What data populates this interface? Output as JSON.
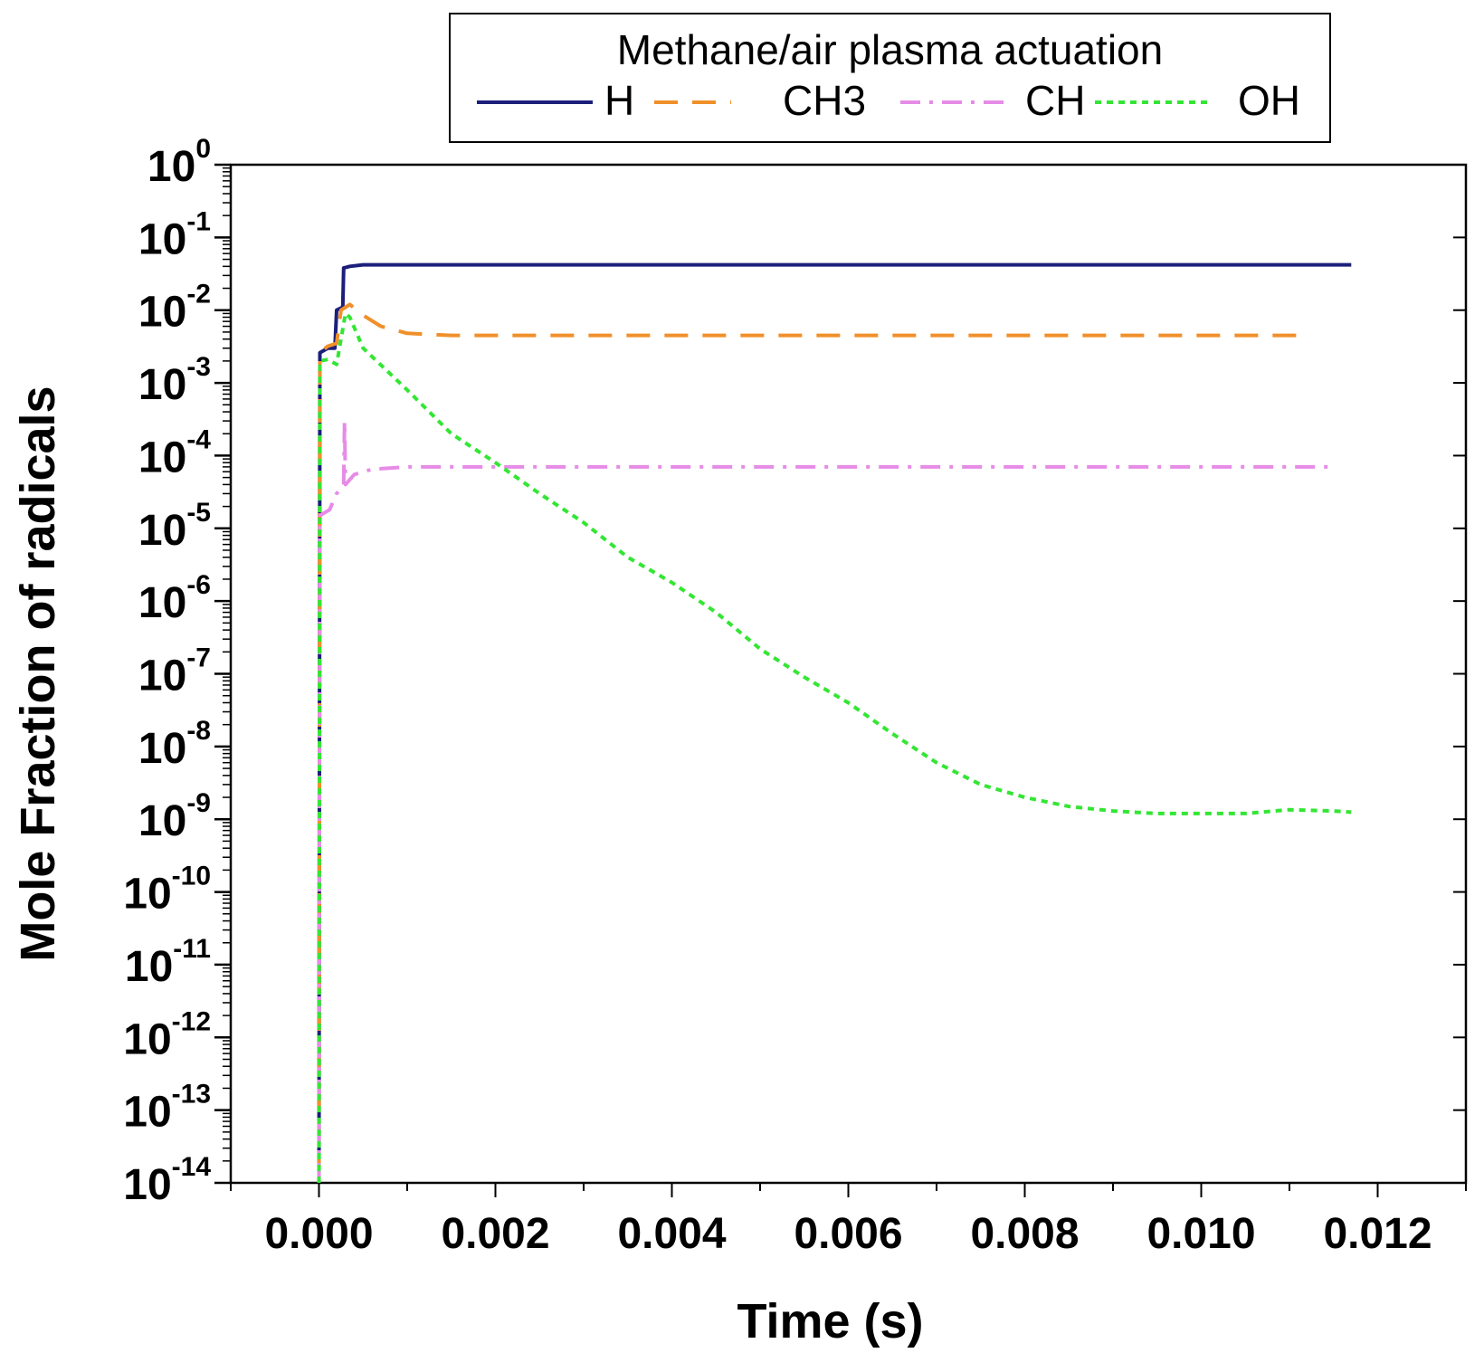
{
  "chart_data": {
    "type": "line",
    "title": "Methane/air plasma actuation",
    "xlabel": "Time (s)",
    "ylabel": "Mole Fraction of radicals",
    "xlim": [
      -0.001,
      0.013
    ],
    "ylim_exponent": [
      -14,
      0
    ],
    "y_scale": "log",
    "x_ticks": [
      0.0,
      0.002,
      0.004,
      0.006,
      0.008,
      0.01,
      0.012
    ],
    "x_tick_labels": [
      "0.000",
      "0.002",
      "0.004",
      "0.006",
      "0.008",
      "0.010",
      "0.012"
    ],
    "y_tick_exponents": [
      0,
      -1,
      -2,
      -3,
      -4,
      -5,
      -6,
      -7,
      -8,
      -9,
      -10,
      -11,
      -12,
      -13,
      -14
    ],
    "y_tick_base": "10",
    "legend_position": "top",
    "series": [
      {
        "name": "H",
        "color": "#1c1f7a",
        "dash": "solid",
        "points": [
          [
            0.0,
            1e-14
          ],
          [
            1e-05,
            0.0026
          ],
          [
            0.0001,
            0.003
          ],
          [
            0.00018,
            0.003
          ],
          [
            0.0002,
            0.01
          ],
          [
            0.00027,
            0.011
          ],
          [
            0.00028,
            0.038
          ],
          [
            0.00035,
            0.04
          ],
          [
            0.0005,
            0.042
          ],
          [
            0.002,
            0.042
          ],
          [
            0.006,
            0.042
          ],
          [
            0.01,
            0.042
          ],
          [
            0.0117,
            0.042
          ]
        ]
      },
      {
        "name": "CH3",
        "color": "#f0902a",
        "dash": "long-dash",
        "points": [
          [
            0.0,
            1e-14
          ],
          [
            1e-05,
            0.0026
          ],
          [
            0.0001,
            0.0032
          ],
          [
            0.0002,
            0.0035
          ],
          [
            0.00025,
            0.01
          ],
          [
            0.00035,
            0.012
          ],
          [
            0.0005,
            0.0085
          ],
          [
            0.0007,
            0.006
          ],
          [
            0.001,
            0.0048
          ],
          [
            0.0015,
            0.0045
          ],
          [
            0.004,
            0.0045
          ],
          [
            0.008,
            0.0045
          ],
          [
            0.0112,
            0.0045
          ]
        ]
      },
      {
        "name": "CH",
        "color": "#e68ce6",
        "dash": "dash-dot",
        "points": [
          [
            0.0,
            1e-14
          ],
          [
            1e-05,
            1.5e-05
          ],
          [
            0.00012,
            1.8e-05
          ],
          [
            0.0002,
            3e-05
          ],
          [
            0.00028,
            4e-05
          ],
          [
            0.00029,
            0.0003
          ],
          [
            0.0003,
            4e-05
          ],
          [
            0.0004,
            5.5e-05
          ],
          [
            0.0006,
            6.5e-05
          ],
          [
            0.001,
            7e-05
          ],
          [
            0.005,
            7e-05
          ],
          [
            0.01,
            7e-05
          ],
          [
            0.0115,
            7e-05
          ]
        ]
      },
      {
        "name": "OH",
        "color": "#33e633",
        "dash": "dotted",
        "points": [
          [
            0.0,
            1e-14
          ],
          [
            1e-05,
            0.002
          ],
          [
            0.0001,
            0.0021
          ],
          [
            0.0002,
            0.0018
          ],
          [
            0.0003,
            0.009
          ],
          [
            0.00035,
            0.008
          ],
          [
            0.0005,
            0.003
          ],
          [
            0.001,
            0.0008
          ],
          [
            0.0015,
            0.0002
          ],
          [
            0.002,
            8e-05
          ],
          [
            0.0025,
            3e-05
          ],
          [
            0.003,
            1.2e-05
          ],
          [
            0.0035,
            4e-06
          ],
          [
            0.004,
            1.8e-06
          ],
          [
            0.0045,
            7e-07
          ],
          [
            0.005,
            2.2e-07
          ],
          [
            0.0055,
            9e-08
          ],
          [
            0.006,
            4e-08
          ],
          [
            0.0065,
            1.5e-08
          ],
          [
            0.007,
            6e-09
          ],
          [
            0.0075,
            3e-09
          ],
          [
            0.008,
            2e-09
          ],
          [
            0.0085,
            1.5e-09
          ],
          [
            0.009,
            1.3e-09
          ],
          [
            0.0095,
            1.2e-09
          ],
          [
            0.01,
            1.2e-09
          ],
          [
            0.0105,
            1.2e-09
          ],
          [
            0.011,
            1.35e-09
          ],
          [
            0.0115,
            1.3e-09
          ],
          [
            0.0117,
            1.25e-09
          ]
        ]
      }
    ]
  }
}
